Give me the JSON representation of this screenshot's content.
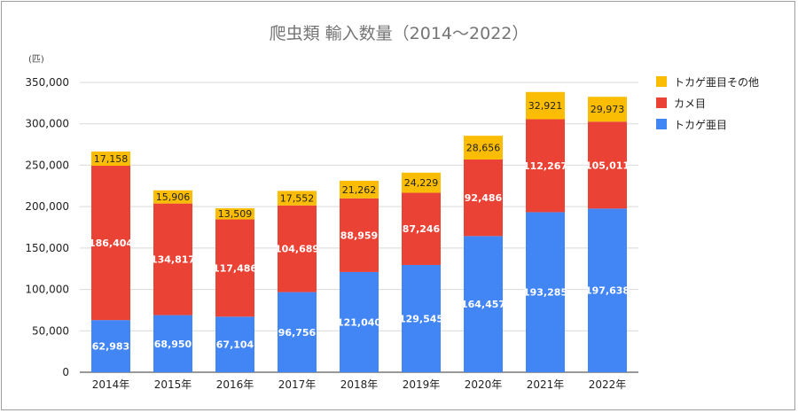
{
  "chart_data": {
    "type": "bar",
    "stacked": true,
    "title": "爬虫類 輸入数量（2014～2022）",
    "unit_label": "(匹)",
    "xlabel": "",
    "ylabel": "",
    "ylim": [
      0,
      350000
    ],
    "yticks": [
      0,
      50000,
      100000,
      150000,
      200000,
      250000,
      300000,
      350000
    ],
    "ytick_labels": [
      "0",
      "50,000",
      "100,000",
      "150,000",
      "200,000",
      "250,000",
      "300,000",
      "350,000"
    ],
    "grid": true,
    "legend_position": "right",
    "categories": [
      "2014年",
      "2015年",
      "2016年",
      "2017年",
      "2018年",
      "2019年",
      "2020年",
      "2021年",
      "2022年"
    ],
    "series": [
      {
        "name": "トカゲ亜目",
        "color": "#4285f4",
        "values": [
          62983,
          68950,
          67104,
          96756,
          121040,
          129545,
          164457,
          193285,
          197638
        ],
        "labels": [
          "62,983",
          "68,950",
          "67,104",
          "96,756",
          "121,040",
          "129,545",
          "164,457",
          "193,285",
          "197,638"
        ]
      },
      {
        "name": "カメ目",
        "color": "#ea4335",
        "values": [
          186404,
          134817,
          117486,
          104689,
          88959,
          87246,
          92486,
          112267,
          105011
        ],
        "labels": [
          "186,404",
          "134,817",
          "117,486",
          "104,689",
          "88,959",
          "87,246",
          "92,486",
          "112,267",
          "105,011"
        ]
      },
      {
        "name": "トカゲ亜目その他",
        "color": "#fbbc04",
        "values": [
          17158,
          15906,
          13509,
          17552,
          21262,
          24229,
          28656,
          32921,
          29973
        ],
        "labels": [
          "17,158",
          "15,906",
          "13,509",
          "17,552",
          "21,262",
          "24,229",
          "28,656",
          "32,921",
          "29,973"
        ]
      }
    ],
    "legend_order": [
      2,
      1,
      0
    ]
  }
}
